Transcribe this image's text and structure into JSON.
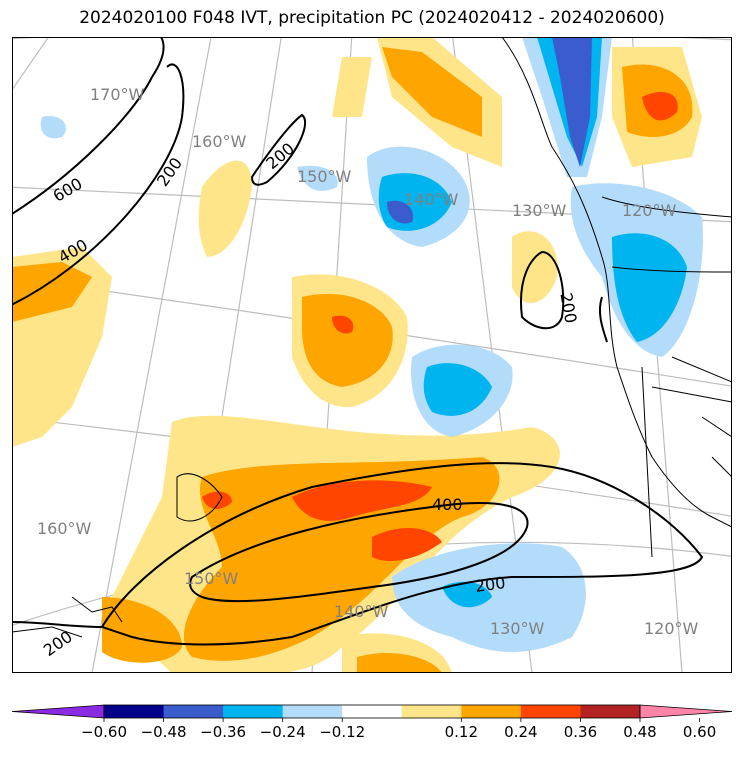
{
  "title": "2024020100 F048 IVT, precipitation PC (2024020412 - 2024020600)",
  "colors": {
    "frame": "#000000",
    "graticule": "#bdbdbd",
    "coast": "#000000",
    "contour": "#000000",
    "lon_label": "#808080"
  },
  "lon_labels_top": [
    "170°W",
    "160°W",
    "150°W",
    "140°W",
    "130°W",
    "120°W"
  ],
  "lon_labels_bottom": [
    "160°W",
    "150°W",
    "140°W",
    "130°W",
    "120°W"
  ],
  "contour_labels": [
    "600",
    "400",
    "200",
    "200",
    "200",
    "400",
    "200",
    "200"
  ],
  "colorbar": {
    "colors": [
      "#8a2be2",
      "#00008b",
      "#3a5ccc",
      "#00b4f0",
      "#b3dcfa",
      "#ffffff",
      "#ffe58a",
      "#ffa500",
      "#ff4500",
      "#b22222",
      "#ff85a8"
    ],
    "ticks": [
      "−0.60",
      "−0.48",
      "−0.36",
      "−0.24",
      "−0.12",
      "0.12",
      "0.24",
      "0.36",
      "0.48",
      "0.60"
    ]
  }
}
